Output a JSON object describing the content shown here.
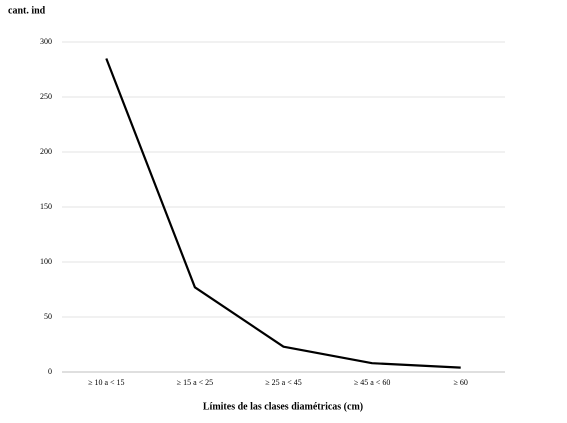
{
  "chart_data": {
    "type": "line",
    "y_label": "cant. ind",
    "x_label": "Límites de las clases diamétricas (cm)",
    "categories": [
      "≥ 10 a < 15",
      "≥ 15 a < 25",
      "≥ 25 a < 45",
      "≥ 45 a < 60",
      "≥ 60"
    ],
    "values": [
      285,
      77,
      23,
      8,
      4
    ],
    "color": "#000000",
    "ylim": [
      0,
      300
    ],
    "yticks": [
      0,
      50,
      100,
      150,
      200,
      250,
      300
    ],
    "grid": true
  }
}
